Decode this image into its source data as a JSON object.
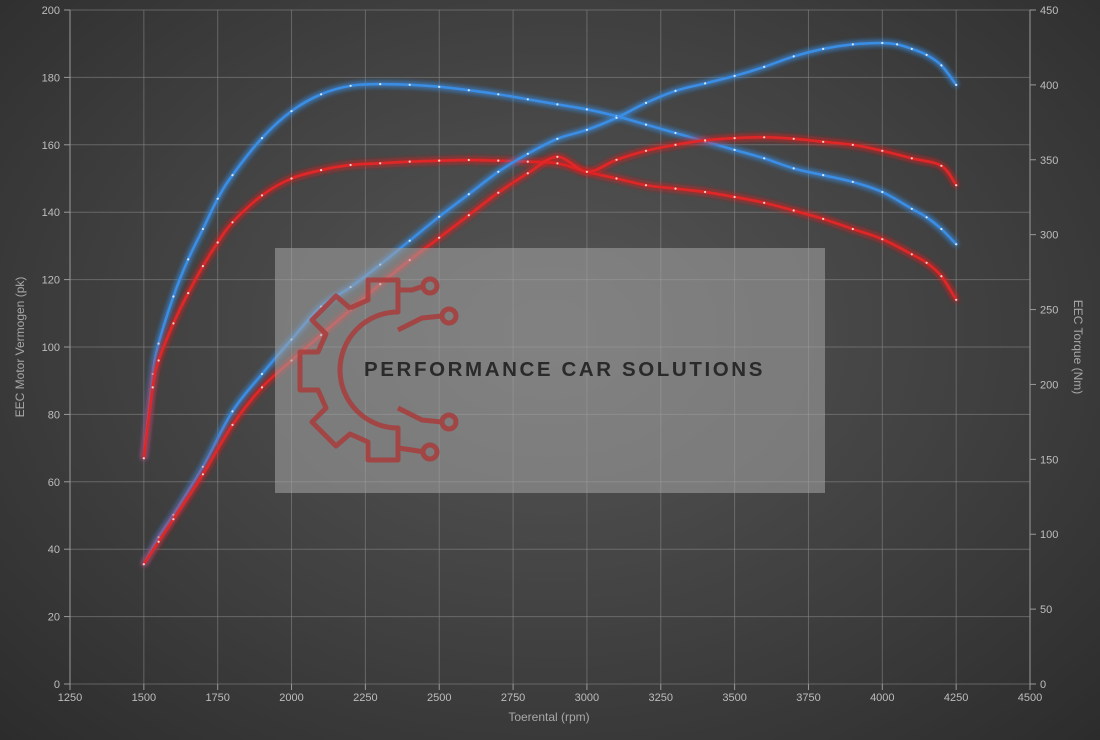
{
  "chart_data": {
    "type": "line",
    "title": "",
    "xlabel": "Toerental (rpm)",
    "ylabel_left": "EEC Motor Vermogen (pk)",
    "ylabel_right": "EEC Torque (Nm)",
    "xlim": [
      1250,
      4500
    ],
    "ylim_left": [
      0,
      200
    ],
    "ylim_right": [
      0,
      450
    ],
    "x_ticks": [
      1250,
      1500,
      1750,
      2000,
      2250,
      2500,
      2750,
      3000,
      3250,
      3500,
      3750,
      4000,
      4250,
      4500
    ],
    "y_ticks_left": [
      0,
      20,
      40,
      60,
      80,
      100,
      120,
      140,
      160,
      180,
      200
    ],
    "y_ticks_right": [
      0,
      50,
      100,
      150,
      200,
      250,
      300,
      350,
      400,
      450
    ],
    "grid": true,
    "legend": "none",
    "series": [
      {
        "axis": "left",
        "color": "#3a8ee6",
        "points": [
          [
            1500,
            67
          ],
          [
            1530,
            92
          ],
          [
            1550,
            101
          ],
          [
            1600,
            115
          ],
          [
            1650,
            126
          ],
          [
            1700,
            135
          ],
          [
            1750,
            144
          ],
          [
            1800,
            151
          ],
          [
            1900,
            162
          ],
          [
            2000,
            170
          ],
          [
            2100,
            175
          ],
          [
            2200,
            177.5
          ],
          [
            2300,
            178
          ],
          [
            2400,
            177.8
          ],
          [
            2500,
            177.2
          ],
          [
            2600,
            176.2
          ],
          [
            2700,
            175
          ],
          [
            2800,
            173.5
          ],
          [
            2900,
            172
          ],
          [
            3000,
            170.5
          ],
          [
            3100,
            168.5
          ],
          [
            3200,
            166
          ],
          [
            3300,
            163.5
          ],
          [
            3400,
            161
          ],
          [
            3500,
            158.5
          ],
          [
            3600,
            156
          ],
          [
            3700,
            153
          ],
          [
            3800,
            151
          ],
          [
            3900,
            149
          ],
          [
            4000,
            146
          ],
          [
            4100,
            141
          ],
          [
            4150,
            138.5
          ],
          [
            4200,
            135
          ],
          [
            4250,
            130.5
          ]
        ]
      },
      {
        "axis": "left",
        "color": "#e02828",
        "points": [
          [
            1500,
            67
          ],
          [
            1530,
            88
          ],
          [
            1550,
            96
          ],
          [
            1600,
            107
          ],
          [
            1650,
            116
          ],
          [
            1700,
            124
          ],
          [
            1750,
            131
          ],
          [
            1800,
            137
          ],
          [
            1900,
            145
          ],
          [
            2000,
            150
          ],
          [
            2100,
            152.5
          ],
          [
            2200,
            154
          ],
          [
            2300,
            154.5
          ],
          [
            2400,
            155
          ],
          [
            2500,
            155.3
          ],
          [
            2600,
            155.5
          ],
          [
            2700,
            155.3
          ],
          [
            2800,
            155
          ],
          [
            2900,
            154.5
          ],
          [
            3000,
            152
          ],
          [
            3100,
            150
          ],
          [
            3200,
            148
          ],
          [
            3300,
            147
          ],
          [
            3400,
            146
          ],
          [
            3500,
            144.5
          ],
          [
            3600,
            142.8
          ],
          [
            3700,
            140.5
          ],
          [
            3800,
            138
          ],
          [
            3900,
            135
          ],
          [
            4000,
            132
          ],
          [
            4100,
            127.5
          ],
          [
            4150,
            125
          ],
          [
            4200,
            121
          ],
          [
            4250,
            114
          ]
        ]
      },
      {
        "axis": "right",
        "color": "#3a8ee6",
        "points": [
          [
            1500,
            80
          ],
          [
            1550,
            98
          ],
          [
            1600,
            113
          ],
          [
            1700,
            145
          ],
          [
            1800,
            182
          ],
          [
            1900,
            207
          ],
          [
            2000,
            230
          ],
          [
            2100,
            252
          ],
          [
            2200,
            265
          ],
          [
            2300,
            280
          ],
          [
            2400,
            296
          ],
          [
            2500,
            312
          ],
          [
            2600,
            327
          ],
          [
            2700,
            342
          ],
          [
            2800,
            354
          ],
          [
            2900,
            364
          ],
          [
            3000,
            370
          ],
          [
            3100,
            378
          ],
          [
            3200,
            388
          ],
          [
            3300,
            396
          ],
          [
            3400,
            401
          ],
          [
            3500,
            406
          ],
          [
            3600,
            412
          ],
          [
            3700,
            419
          ],
          [
            3800,
            424
          ],
          [
            3900,
            427
          ],
          [
            4000,
            428
          ],
          [
            4050,
            427
          ],
          [
            4100,
            424
          ],
          [
            4150,
            420
          ],
          [
            4200,
            413
          ],
          [
            4250,
            400
          ]
        ]
      },
      {
        "axis": "right",
        "color": "#e02828",
        "points": [
          [
            1500,
            80
          ],
          [
            1550,
            95
          ],
          [
            1600,
            110
          ],
          [
            1700,
            140
          ],
          [
            1800,
            173
          ],
          [
            1900,
            198
          ],
          [
            2000,
            216
          ],
          [
            2100,
            233
          ],
          [
            2200,
            250
          ],
          [
            2300,
            267
          ],
          [
            2400,
            283
          ],
          [
            2500,
            298
          ],
          [
            2600,
            313
          ],
          [
            2700,
            328
          ],
          [
            2800,
            341
          ],
          [
            2900,
            352
          ],
          [
            3000,
            342
          ],
          [
            3100,
            350
          ],
          [
            3200,
            356
          ],
          [
            3300,
            360
          ],
          [
            3400,
            363
          ],
          [
            3500,
            364.5
          ],
          [
            3600,
            365
          ],
          [
            3700,
            364
          ],
          [
            3800,
            362
          ],
          [
            3900,
            360
          ],
          [
            4000,
            356
          ],
          [
            4100,
            351
          ],
          [
            4200,
            346
          ],
          [
            4250,
            333
          ]
        ]
      }
    ]
  },
  "watermark": {
    "text": "PERFORMANCE CAR SOLUTIONS",
    "logo_icon": "gear-circuit-icon",
    "logo_color": "#a93c3c"
  }
}
